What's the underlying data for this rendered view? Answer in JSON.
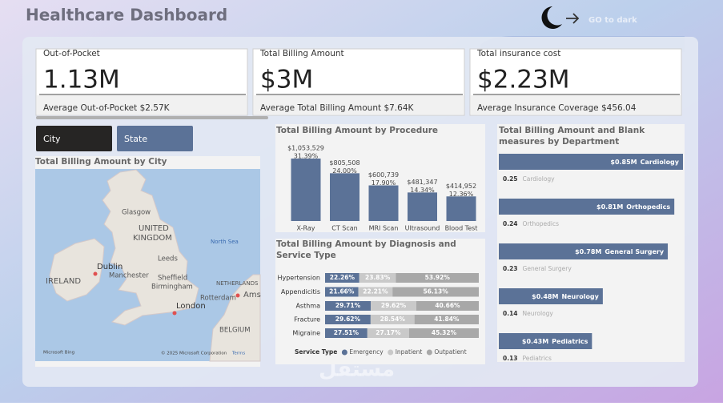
{
  "header": {
    "title": "Healthcare Dashboard",
    "theme_toggle": "GO to dark"
  },
  "kpis": [
    {
      "label": "Out-of-Pocket",
      "value": "1.13M",
      "note": "Average Out-of-Pocket $2.57K"
    },
    {
      "label": "Total Billing Amount",
      "value": "$3M",
      "note": "Average Total Billing Amount $7.64K"
    },
    {
      "label": "Total insurance cost",
      "value": "$2.23M",
      "note": "Average Insurance Coverage $456.04"
    }
  ],
  "slicers": [
    "City",
    "State"
  ],
  "map": {
    "title": "Total Billing Amount by City",
    "labels": [
      "Glasgow",
      "UNITED",
      "KINGDOM",
      "Leeds",
      "Dublin",
      "Manchester",
      "IRELAND",
      "Sheffield",
      "Birmingham",
      "London",
      "North Sea",
      "NETHERLANDS",
      "Rotterdam",
      "Ams",
      "BELGIUM"
    ],
    "credits": [
      "Microsoft Bing",
      "© 2025 Microsoft Corporation",
      "Terms"
    ]
  },
  "watermark": "مستقل",
  "chart_data": [
    {
      "type": "bar",
      "title": "Total Billing Amount by Procedure",
      "categories": [
        "X-Ray",
        "CT Scan",
        "MRI Scan",
        "Ultrasound",
        "Blood Test"
      ],
      "values": [
        1053529,
        805508,
        600739,
        481347,
        414952
      ],
      "value_labels": [
        "$1,053,529",
        "$805,508",
        "$600,739",
        "$481,347",
        "$414,952"
      ],
      "shares": [
        31.39,
        24.0,
        17.9,
        14.34,
        12.36
      ],
      "share_labels": [
        "31.39%",
        "24.00%",
        "17.90%",
        "14.34%",
        "12.36%"
      ],
      "color": "#5b7297"
    },
    {
      "type": "stacked-percent-bar",
      "title": "Total Billing Amount by Diagnosis and Service Type",
      "categories": [
        "Hypertension",
        "Appendicitis",
        "Asthma",
        "Fracture",
        "Migraine"
      ],
      "legend_title": "Service Type",
      "series": [
        {
          "name": "Emergency",
          "color": "#5b7297",
          "values": [
            22.26,
            21.66,
            29.71,
            29.62,
            27.51
          ],
          "value_labels": [
            "22.26%",
            "21.66%",
            "29.71%",
            "29.62%",
            "27.51%"
          ]
        },
        {
          "name": "Inpatient",
          "color": "#c9c9c9",
          "values": [
            23.83,
            22.21,
            29.62,
            28.54,
            27.17
          ],
          "value_labels": [
            "23.83%",
            "22.21%",
            "29.62%",
            "28.54%",
            "27.17%"
          ]
        },
        {
          "name": "Outpatient",
          "color": "#a8a8a8",
          "values": [
            53.92,
            56.13,
            40.66,
            41.84,
            45.32
          ],
          "value_labels": [
            "53.92%",
            "56.13%",
            "40.66%",
            "41.84%",
            "45.32%"
          ]
        }
      ]
    },
    {
      "type": "hbar",
      "title": "Total Billing Amount and Blank measures by Department",
      "categories": [
        "Cardiology",
        "Orthopedics",
        "General Surgery",
        "Neurology",
        "Pediatrics"
      ],
      "series": [
        {
          "color": "#5b7297",
          "values": [
            850000,
            810000,
            780000,
            480000,
            430000
          ],
          "value_labels": [
            "$0.85M",
            "$0.81M",
            "$0.78M",
            "$0.48M",
            "$0.43M"
          ]
        },
        {
          "values": [
            0.25,
            0.24,
            0.23,
            0.14,
            0.13
          ]
        }
      ]
    }
  ]
}
